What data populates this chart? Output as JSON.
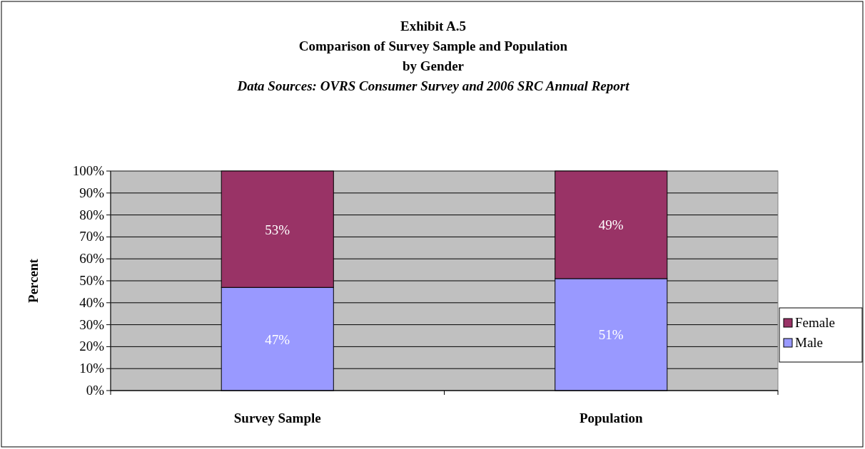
{
  "chart_data": {
    "type": "bar",
    "stacked": true,
    "title": "Exhibit A.5\nComparison of Survey Sample and Population\nby Gender",
    "subtitle": "Data Sources: OVRS Consumer Survey and 2006 SRC Annual Report",
    "ylabel": "Percent",
    "categories": [
      "Survey Sample",
      "Population"
    ],
    "series": [
      {
        "name": "Male",
        "color": "#9999ff",
        "values": [
          47,
          51
        ],
        "value_labels": [
          "47%",
          "51%"
        ]
      },
      {
        "name": "Female",
        "color": "#993366",
        "values": [
          53,
          49
        ],
        "value_labels": [
          "53%",
          "49%"
        ]
      }
    ],
    "ylim": [
      0,
      100
    ],
    "yticks": [
      {
        "value": 0,
        "label": "0%"
      },
      {
        "value": 10,
        "label": "10%"
      },
      {
        "value": 20,
        "label": "20%"
      },
      {
        "value": 30,
        "label": "30%"
      },
      {
        "value": 40,
        "label": "40%"
      },
      {
        "value": 50,
        "label": "50%"
      },
      {
        "value": 60,
        "label": "60%"
      },
      {
        "value": 70,
        "label": "70%"
      },
      {
        "value": 80,
        "label": "80%"
      },
      {
        "value": 90,
        "label": "90%"
      },
      {
        "value": 100,
        "label": "100%"
      }
    ],
    "grid": "y",
    "legend": "right"
  }
}
